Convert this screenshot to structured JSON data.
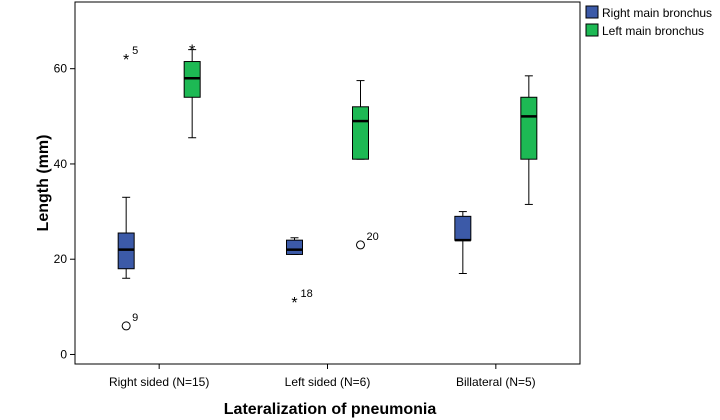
{
  "chart_data": {
    "type": "boxplot",
    "xlabel": "Lateralization of pneumonia",
    "ylabel": "Length (mm)",
    "ylim": [
      -2,
      74
    ],
    "yticks": [
      0,
      20,
      40,
      60
    ],
    "categories": [
      "Right sided (N=15)",
      "Left sided (N=6)",
      "Billateral (N=5)"
    ],
    "legend_position": "top-right",
    "series": [
      {
        "name": "Right main bronchus",
        "color": "#3C5AA8",
        "boxes": [
          {
            "whisker_low": 16,
            "q1": 18,
            "median": 22,
            "q3": 25.5,
            "whisker_high": 33
          },
          {
            "whisker_low": 21,
            "q1": 21,
            "median": 22,
            "q3": 24,
            "whisker_high": 24.5
          },
          {
            "whisker_low": 17,
            "q1": 24,
            "median": 24,
            "q3": 29,
            "whisker_high": 30
          }
        ],
        "outliers": [
          {
            "category": 0,
            "value": 62,
            "kind": "extreme",
            "label": "5"
          },
          {
            "category": 0,
            "value": 6,
            "kind": "mild",
            "label": "9"
          },
          {
            "category": 1,
            "value": 11,
            "kind": "extreme",
            "label": "18"
          }
        ]
      },
      {
        "name": "Left main bronchus",
        "color": "#1DB954",
        "boxes": [
          {
            "whisker_low": 45.5,
            "q1": 54,
            "median": 58,
            "q3": 61.5,
            "whisker_high": 64
          },
          {
            "whisker_low": 41,
            "q1": 41,
            "median": 49,
            "q3": 52,
            "whisker_high": 57.5
          },
          {
            "whisker_low": 31.5,
            "q1": 41,
            "median": 50,
            "q3": 54,
            "whisker_high": 58.5
          }
        ],
        "outliers": [
          {
            "category": 0,
            "value": 64,
            "kind": "extreme",
            "label": ""
          },
          {
            "category": 1,
            "value": 23,
            "kind": "mild",
            "label": "20"
          }
        ]
      }
    ]
  }
}
